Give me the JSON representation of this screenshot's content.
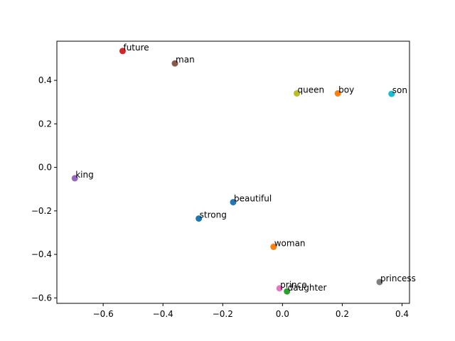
{
  "chart_data": {
    "type": "scatter",
    "title": "",
    "xlabel": "",
    "ylabel": "",
    "xlim": [
      -0.755,
      0.425
    ],
    "ylim": [
      -0.625,
      0.58
    ],
    "grid": false,
    "x_ticks": [
      {
        "value": -0.6,
        "label": "−0.6"
      },
      {
        "value": -0.4,
        "label": "−0.4"
      },
      {
        "value": -0.2,
        "label": "−0.2"
      },
      {
        "value": 0.0,
        "label": "0.0"
      },
      {
        "value": 0.2,
        "label": "0.2"
      },
      {
        "value": 0.4,
        "label": "0.4"
      }
    ],
    "y_ticks": [
      {
        "value": -0.6,
        "label": "−0.6"
      },
      {
        "value": -0.4,
        "label": "−0.4"
      },
      {
        "value": -0.2,
        "label": "−0.2"
      },
      {
        "value": 0.0,
        "label": "0.0"
      },
      {
        "value": 0.2,
        "label": "0.2"
      },
      {
        "value": 0.4,
        "label": "0.4"
      }
    ],
    "points": [
      {
        "label": "strong",
        "x": -0.28,
        "y": -0.235,
        "color": "#1f77b4"
      },
      {
        "label": "boy",
        "x": 0.185,
        "y": 0.34,
        "color": "#ff7f0e"
      },
      {
        "label": "daughter",
        "x": 0.015,
        "y": -0.57,
        "color": "#2ca02c"
      },
      {
        "label": "future",
        "x": -0.535,
        "y": 0.535,
        "color": "#d62728"
      },
      {
        "label": "king",
        "x": -0.695,
        "y": -0.05,
        "color": "#9467bd"
      },
      {
        "label": "man",
        "x": -0.36,
        "y": 0.478,
        "color": "#8c564b"
      },
      {
        "label": "prince",
        "x": -0.01,
        "y": -0.556,
        "color": "#e377c2"
      },
      {
        "label": "princess",
        "x": 0.325,
        "y": -0.527,
        "color": "#7f7f7f"
      },
      {
        "label": "queen",
        "x": 0.048,
        "y": 0.34,
        "color": "#bcbd22"
      },
      {
        "label": "son",
        "x": 0.365,
        "y": 0.338,
        "color": "#17becf"
      },
      {
        "label": "beautiful",
        "x": -0.165,
        "y": -0.16,
        "color": "#1f77b4"
      },
      {
        "label": "woman",
        "x": -0.03,
        "y": -0.365,
        "color": "#ff7f0e"
      }
    ]
  }
}
